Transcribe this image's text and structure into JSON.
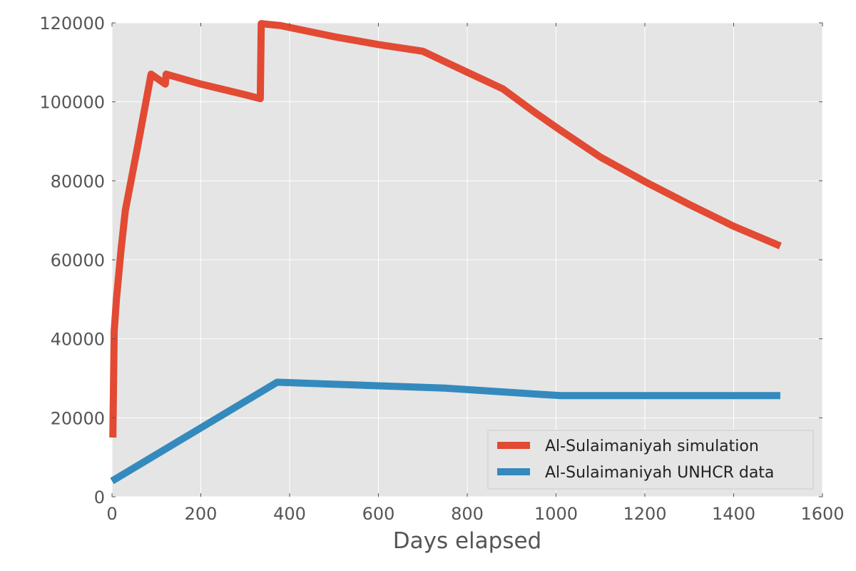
{
  "chart_data": {
    "type": "line",
    "title": "",
    "xlabel": "Days elapsed",
    "ylabel": "",
    "xlim": [
      0,
      1600
    ],
    "ylim": [
      0,
      120000
    ],
    "xticks": [
      0,
      200,
      400,
      600,
      800,
      1000,
      1200,
      1400,
      1600
    ],
    "yticks": [
      0,
      20000,
      40000,
      60000,
      80000,
      100000,
      120000
    ],
    "xtick_labels": [
      "0",
      "200",
      "400",
      "600",
      "800",
      "1000",
      "1200",
      "1400",
      "1600"
    ],
    "ytick_labels": [
      "0",
      "20000",
      "40000",
      "60000",
      "80000",
      "100000",
      "120000"
    ],
    "grid": true,
    "background": "#e5e5e5",
    "legend_position": "bottom-right",
    "series": [
      {
        "name": "Al-Sulaimaniyah simulation",
        "color": "#e24a33",
        "points": [
          [
            2,
            15000
          ],
          [
            5,
            42000
          ],
          [
            10,
            50000
          ],
          [
            20,
            62000
          ],
          [
            30,
            72500
          ],
          [
            60,
            90000
          ],
          [
            88,
            107000
          ],
          [
            120,
            104500
          ],
          [
            122,
            107000
          ],
          [
            200,
            104500
          ],
          [
            300,
            101800
          ],
          [
            334,
            100800
          ],
          [
            336,
            119800
          ],
          [
            380,
            119300
          ],
          [
            500,
            116500
          ],
          [
            600,
            114500
          ],
          [
            700,
            112800
          ],
          [
            800,
            107500
          ],
          [
            880,
            103300
          ],
          [
            950,
            97500
          ],
          [
            1010,
            92800
          ],
          [
            1100,
            86000
          ],
          [
            1200,
            79800
          ],
          [
            1300,
            74000
          ],
          [
            1400,
            68500
          ],
          [
            1505,
            63500
          ]
        ]
      },
      {
        "name": "Al-Sulaimaniyah UNHCR data",
        "color": "#348abd",
        "points": [
          [
            0,
            4000
          ],
          [
            372,
            29000
          ],
          [
            750,
            27500
          ],
          [
            1010,
            25600
          ],
          [
            1505,
            25600
          ]
        ]
      }
    ]
  }
}
